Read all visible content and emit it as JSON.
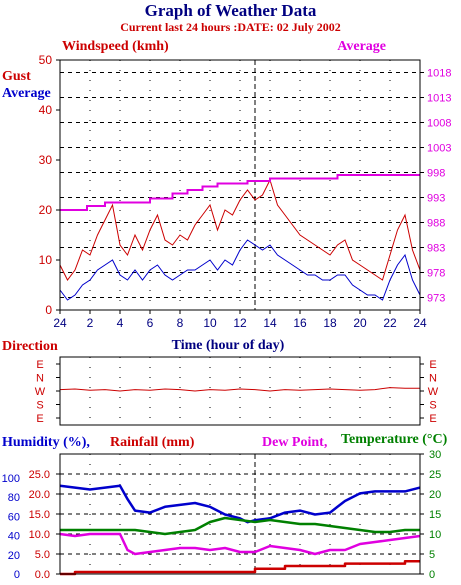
{
  "page": {
    "title": "Graph of Weather Data",
    "subtitle": "Current last 24 hours :DATE: 02 July 2002"
  },
  "colors": {
    "red": "#cc0000",
    "blue": "#0000cc",
    "magenta": "#e000e0",
    "green": "#008000",
    "navy": "#000080",
    "grid": "#000000"
  },
  "chart_data": [
    {
      "id": "wind",
      "type": "line",
      "labels": {
        "windspeed": "Windspeed (kmh)",
        "average_right": "Average",
        "gust": "Gust",
        "average_left": "Average",
        "xlabel": "Time (hour of day)"
      },
      "x_ticks": [
        "24",
        "2",
        "4",
        "6",
        "8",
        "10",
        "12",
        "14",
        "16",
        "18",
        "20",
        "22",
        "24"
      ],
      "y_left_ticks": [
        "0",
        "10",
        "20",
        "30",
        "40",
        "50"
      ],
      "y_left_range": [
        0,
        50
      ],
      "y_right_ticks": [
        "973",
        "978",
        "983",
        "988",
        "993",
        "998",
        "1003",
        "1008",
        "1013",
        "1018"
      ],
      "y_right_range": [
        970.5,
        1020.5
      ],
      "x_range": [
        0,
        24
      ],
      "marker_hour": 13,
      "series": [
        {
          "name": "Gust",
          "color": "#cc0000",
          "points": [
            [
              0,
              9
            ],
            [
              0.5,
              6
            ],
            [
              1,
              8
            ],
            [
              1.5,
              12
            ],
            [
              2,
              11
            ],
            [
              2.5,
              15
            ],
            [
              3,
              18
            ],
            [
              3.5,
              21
            ],
            [
              4,
              13
            ],
            [
              4.5,
              11
            ],
            [
              5,
              15
            ],
            [
              5.5,
              12
            ],
            [
              6,
              16
            ],
            [
              6.5,
              19
            ],
            [
              7,
              14
            ],
            [
              7.5,
              13
            ],
            [
              8,
              15
            ],
            [
              8.5,
              14
            ],
            [
              9,
              17
            ],
            [
              9.5,
              19
            ],
            [
              10,
              21
            ],
            [
              10.5,
              16
            ],
            [
              11,
              20
            ],
            [
              11.5,
              19
            ],
            [
              12,
              22
            ],
            [
              12.5,
              24
            ],
            [
              13,
              22
            ],
            [
              13.5,
              23
            ],
            [
              14,
              26
            ],
            [
              14.5,
              21
            ],
            [
              15,
              19
            ],
            [
              15.5,
              17
            ],
            [
              16,
              15
            ],
            [
              16.5,
              14
            ],
            [
              17,
              13
            ],
            [
              17.5,
              12
            ],
            [
              18,
              11
            ],
            [
              18.5,
              13
            ],
            [
              19,
              14
            ],
            [
              19.5,
              10
            ],
            [
              20,
              9
            ],
            [
              20.5,
              8
            ],
            [
              21,
              7
            ],
            [
              21.5,
              6
            ],
            [
              22,
              11
            ],
            [
              22.5,
              16
            ],
            [
              23,
              19
            ],
            [
              23.5,
              12
            ],
            [
              24,
              8
            ]
          ]
        },
        {
          "name": "Average",
          "color": "#0000cc",
          "points": [
            [
              0,
              4
            ],
            [
              0.5,
              2
            ],
            [
              1,
              3
            ],
            [
              1.5,
              5
            ],
            [
              2,
              6
            ],
            [
              2.5,
              8
            ],
            [
              3,
              9
            ],
            [
              3.5,
              10
            ],
            [
              4,
              7
            ],
            [
              4.5,
              6
            ],
            [
              5,
              8
            ],
            [
              5.5,
              6
            ],
            [
              6,
              8
            ],
            [
              6.5,
              9
            ],
            [
              7,
              7
            ],
            [
              7.5,
              6
            ],
            [
              8,
              7
            ],
            [
              8.5,
              8
            ],
            [
              9,
              8
            ],
            [
              9.5,
              9
            ],
            [
              10,
              10
            ],
            [
              10.5,
              8
            ],
            [
              11,
              10
            ],
            [
              11.5,
              9
            ],
            [
              12,
              12
            ],
            [
              12.5,
              14
            ],
            [
              13,
              13
            ],
            [
              13.5,
              12
            ],
            [
              14,
              13
            ],
            [
              14.5,
              11
            ],
            [
              15,
              10
            ],
            [
              15.5,
              9
            ],
            [
              16,
              8
            ],
            [
              16.5,
              7
            ],
            [
              17,
              7
            ],
            [
              17.5,
              6
            ],
            [
              18,
              6
            ],
            [
              18.5,
              7
            ],
            [
              19,
              7
            ],
            [
              19.5,
              5
            ],
            [
              20,
              4
            ],
            [
              20.5,
              3
            ],
            [
              21,
              3
            ],
            [
              21.5,
              2
            ],
            [
              22,
              6
            ],
            [
              22.5,
              9
            ],
            [
              23,
              11
            ],
            [
              23.5,
              6
            ],
            [
              24,
              3
            ]
          ]
        },
        {
          "name": "Pressure",
          "color": "#e000e0",
          "points": [
            [
              0,
              990.5
            ],
            [
              1.8,
              990.5
            ],
            [
              1.8,
              991.3
            ],
            [
              3,
              991.3
            ],
            [
              3,
              992
            ],
            [
              6,
              992
            ],
            [
              6,
              992.8
            ],
            [
              7.5,
              992.8
            ],
            [
              7.5,
              993.8
            ],
            [
              8.5,
              993.8
            ],
            [
              8.5,
              994.5
            ],
            [
              9.5,
              994.5
            ],
            [
              9.5,
              995.2
            ],
            [
              10.5,
              995.2
            ],
            [
              10.5,
              995.8
            ],
            [
              12.5,
              995.8
            ],
            [
              12.5,
              996.3
            ],
            [
              14,
              996.3
            ],
            [
              14,
              996.8
            ],
            [
              18.5,
              996.8
            ],
            [
              18.5,
              997.5
            ],
            [
              24,
              997.5
            ]
          ]
        }
      ]
    },
    {
      "id": "direction",
      "type": "line",
      "labels": {
        "title": "Direction"
      },
      "y_ticks": [
        "E",
        "N",
        "W",
        "S",
        "E"
      ],
      "x_range": [
        0,
        24
      ],
      "y_range": [
        0,
        4
      ],
      "series": [
        {
          "name": "Direction",
          "color": "#cc0000",
          "points": [
            [
              0,
              2.1
            ],
            [
              1,
              2.15
            ],
            [
              2,
              2.05
            ],
            [
              3,
              2.1
            ],
            [
              4,
              2.0
            ],
            [
              5,
              2.1
            ],
            [
              6,
              2.05
            ],
            [
              7,
              2.15
            ],
            [
              8,
              2.1
            ],
            [
              9,
              2.0
            ],
            [
              10,
              2.1
            ],
            [
              11,
              2.05
            ],
            [
              12,
              2.15
            ],
            [
              13,
              2.1
            ],
            [
              14,
              2.0
            ],
            [
              15,
              2.1
            ],
            [
              16,
              2.05
            ],
            [
              17,
              2.1
            ],
            [
              18,
              2.15
            ],
            [
              19,
              2.1
            ],
            [
              20,
              2.05
            ],
            [
              21,
              2.1
            ],
            [
              22,
              2.25
            ],
            [
              23,
              2.2
            ],
            [
              24,
              2.2
            ]
          ]
        }
      ]
    },
    {
      "id": "climate",
      "type": "line",
      "labels": {
        "humidity": "Humidity (%),",
        "rainfall": "Rainfall (mm)",
        "dewpoint": "Dew Point,",
        "temperature": "Temperature (°C)"
      },
      "x_range": [
        0,
        24
      ],
      "y_humidity_ticks": [
        "0",
        "20",
        "40",
        "60",
        "80",
        "100"
      ],
      "y_humidity_range": [
        0,
        125
      ],
      "y_rain_ticks": [
        "0.0",
        "5.0",
        "10.0",
        "15.0",
        "20.0",
        "25.0"
      ],
      "y_rain_range": [
        0,
        30
      ],
      "y_temp_ticks": [
        "0",
        "5",
        "10",
        "15",
        "20",
        "25",
        "30"
      ],
      "y_temp_range": [
        0,
        30
      ],
      "marker_hour": 13,
      "series": [
        {
          "name": "Humidity",
          "color": "#0000cc",
          "points": [
            [
              0,
              92
            ],
            [
              1,
              90
            ],
            [
              2,
              88
            ],
            [
              3,
              90
            ],
            [
              4,
              92
            ],
            [
              4.5,
              78
            ],
            [
              5,
              66
            ],
            [
              6,
              64
            ],
            [
              7,
              70
            ],
            [
              8,
              72
            ],
            [
              9,
              74
            ],
            [
              10,
              70
            ],
            [
              11,
              62
            ],
            [
              12,
              58
            ],
            [
              12.5,
              54
            ],
            [
              13,
              56
            ],
            [
              14,
              58
            ],
            [
              15,
              64
            ],
            [
              16,
              66
            ],
            [
              17,
              62
            ],
            [
              18,
              64
            ],
            [
              18.5,
              70
            ],
            [
              19,
              76
            ],
            [
              20,
              84
            ],
            [
              21,
              86
            ],
            [
              22,
              86
            ],
            [
              23,
              86
            ],
            [
              24,
              90
            ]
          ]
        },
        {
          "name": "Rainfall",
          "color": "#cc0000",
          "points": [
            [
              0,
              0
            ],
            [
              1,
              0
            ],
            [
              1,
              0.5
            ],
            [
              13,
              0.5
            ],
            [
              13,
              1.3
            ],
            [
              15,
              1.3
            ],
            [
              15,
              2.0
            ],
            [
              19,
              2.0
            ],
            [
              19,
              2.6
            ],
            [
              23,
              2.6
            ],
            [
              23,
              3.2
            ],
            [
              24,
              3.2
            ]
          ]
        },
        {
          "name": "Dew Point",
          "color": "#e000e0",
          "points": [
            [
              0,
              10
            ],
            [
              1,
              9.5
            ],
            [
              2,
              10
            ],
            [
              3,
              10
            ],
            [
              4,
              10
            ],
            [
              4.5,
              6
            ],
            [
              5,
              5
            ],
            [
              6,
              5.5
            ],
            [
              7,
              6
            ],
            [
              8,
              6.5
            ],
            [
              9,
              6.5
            ],
            [
              10,
              6
            ],
            [
              11,
              6.5
            ],
            [
              12,
              5.5
            ],
            [
              13,
              5.5
            ],
            [
              14,
              7
            ],
            [
              15,
              6.5
            ],
            [
              16,
              6
            ],
            [
              17,
              5
            ],
            [
              18,
              6
            ],
            [
              19,
              6
            ],
            [
              20,
              7.5
            ],
            [
              21,
              8
            ],
            [
              22,
              8.5
            ],
            [
              23,
              9
            ],
            [
              24,
              9.5
            ]
          ]
        },
        {
          "name": "Temperature",
          "color": "#008000",
          "points": [
            [
              0,
              11
            ],
            [
              1,
              11
            ],
            [
              2,
              11
            ],
            [
              3,
              11
            ],
            [
              4,
              11
            ],
            [
              5,
              11
            ],
            [
              6,
              10.5
            ],
            [
              7,
              10
            ],
            [
              8,
              10.5
            ],
            [
              9,
              11
            ],
            [
              10,
              13
            ],
            [
              11,
              14
            ],
            [
              12,
              13.5
            ],
            [
              13,
              13
            ],
            [
              14,
              13.5
            ],
            [
              15,
              13
            ],
            [
              16,
              12.5
            ],
            [
              17,
              12.5
            ],
            [
              18,
              12
            ],
            [
              19,
              11.5
            ],
            [
              20,
              11
            ],
            [
              21,
              10.5
            ],
            [
              22,
              10.5
            ],
            [
              23,
              11
            ],
            [
              24,
              11
            ]
          ]
        }
      ]
    }
  ]
}
